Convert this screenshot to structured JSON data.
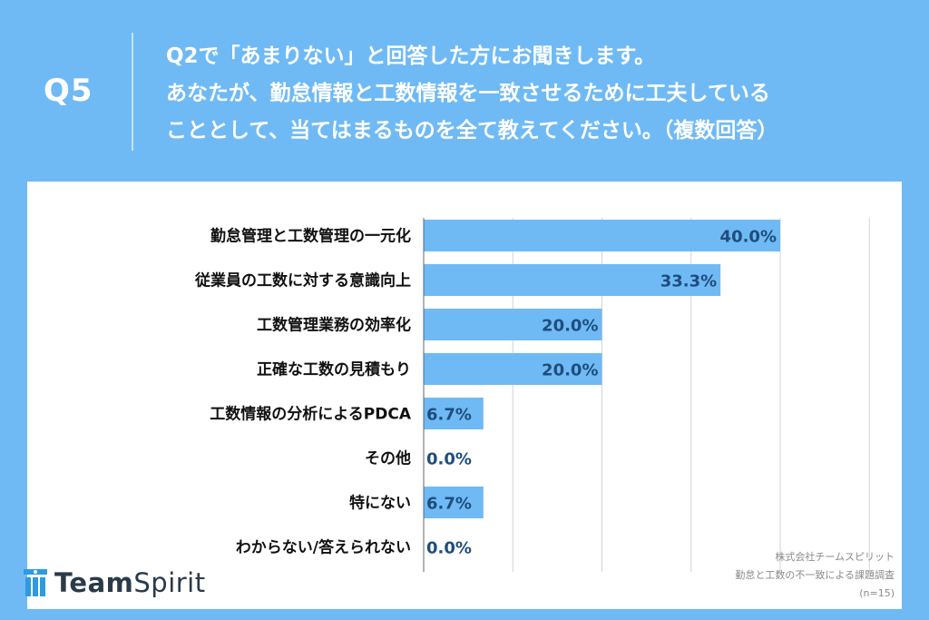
{
  "header": {
    "qnum": "Q5",
    "question_lines": [
      "Q2で「あまりない」と回答した方にお聞きします。",
      "あなたが、勤怠情報と工数情報を一致させるために工夫している",
      "こととして、当てはまるものを全て教えてください。（複数回答）"
    ]
  },
  "colors": {
    "background": "#6fbaf5",
    "bar": "#6fbaf5",
    "value_text": "#1e4d7d"
  },
  "chart_data": {
    "type": "bar",
    "orientation": "horizontal",
    "categories": [
      "勤怠管理と工数管理の一元化",
      "従業員の工数に対する意識向上",
      "工数管理業務の効率化",
      "正確な工数の見積もり",
      "工数情報の分析によるPDCA",
      "その他",
      "特にない",
      "わからない/答えられない"
    ],
    "values": [
      40.0,
      33.3,
      20.0,
      20.0,
      6.7,
      0.0,
      6.7,
      0.0
    ],
    "value_labels": [
      "40.0%",
      "33.3%",
      "20.0%",
      "20.0%",
      "6.7%",
      "0.0%",
      "6.7%",
      "0.0%"
    ],
    "xlim": [
      0,
      40
    ],
    "grid": true,
    "unit": "%"
  },
  "logo": {
    "text_bold": "Team",
    "text_regular": "Spirit",
    "icon": "teamspirit-logo-icon"
  },
  "source": {
    "company": "株式会社チームスピリット",
    "survey": "勤怠と工数の不一致による課題調査",
    "sample": "(n=15)"
  }
}
